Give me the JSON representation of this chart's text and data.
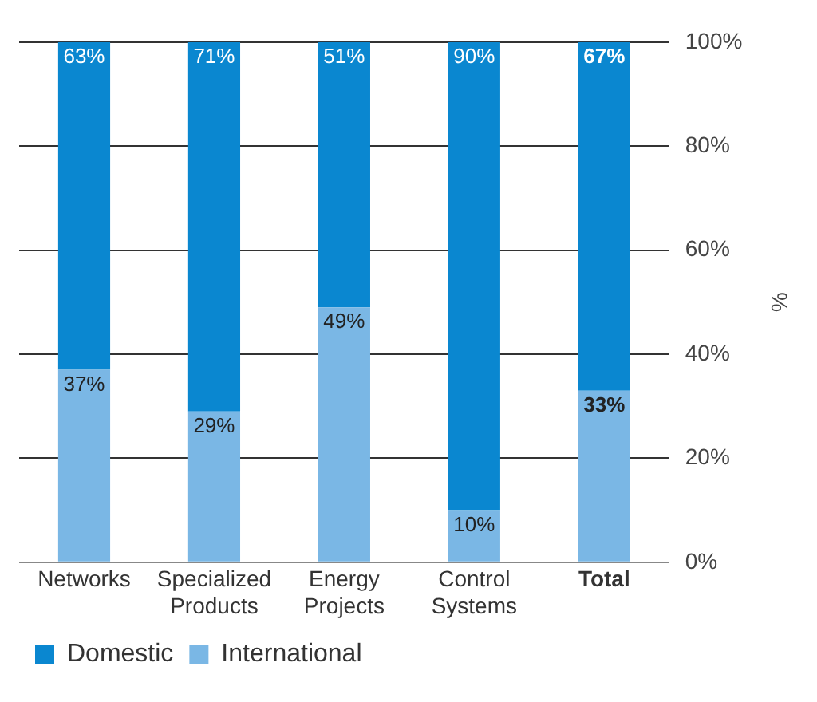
{
  "chart_data": {
    "type": "bar",
    "stacked": true,
    "ylabel": "%",
    "categories": [
      "Networks",
      "Specialized\nProducts",
      "Energy\nProjects",
      "Control\nSystems",
      "Total"
    ],
    "series": [
      {
        "name": "International",
        "color": "#7ab7e5",
        "values": [
          37,
          29,
          49,
          10,
          33
        ],
        "value_labels": [
          "37%",
          "29%",
          "49%",
          "10%",
          "33%"
        ]
      },
      {
        "name": "Domestic",
        "color": "#0a87d0",
        "values": [
          63,
          71,
          51,
          90,
          67
        ],
        "value_labels": [
          "63%",
          "71%",
          "51%",
          "90%",
          "67%"
        ]
      }
    ],
    "ylim": [
      0,
      100
    ],
    "yticks": [
      {
        "value": 0,
        "label": "0%"
      },
      {
        "value": 20,
        "label": "20%"
      },
      {
        "value": 40,
        "label": "40%"
      },
      {
        "value": 60,
        "label": "60%"
      },
      {
        "value": 80,
        "label": "80%"
      },
      {
        "value": 100,
        "label": "100%"
      }
    ],
    "grid": "y",
    "legend": "bottom"
  }
}
